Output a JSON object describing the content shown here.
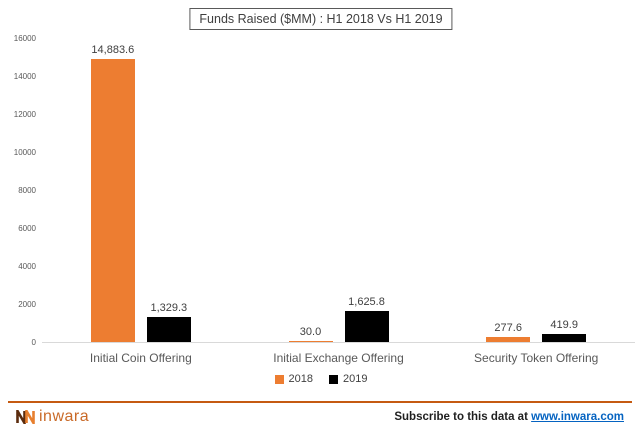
{
  "chart_data": {
    "type": "bar",
    "title": "Funds Raised ($MM) : H1 2018 Vs H1 2019",
    "categories": [
      "Initial Coin Offering",
      "Initial Exchange Offering",
      "Security Token Offering"
    ],
    "series": [
      {
        "name": "2018",
        "color": "#ED7D31",
        "values": [
          14883.6,
          30.0,
          277.6
        ],
        "labels": [
          "14,883.6",
          "30.0",
          "277.6"
        ]
      },
      {
        "name": "2019",
        "color": "#000000",
        "values": [
          1329.3,
          1625.8,
          419.9
        ],
        "labels": [
          "1,329.3",
          "1,625.8",
          "419.9"
        ]
      }
    ],
    "xlabel": "",
    "ylabel": "",
    "ylim": [
      0,
      16000
    ],
    "y_ticks": [
      0,
      2000,
      4000,
      6000,
      8000,
      10000,
      12000,
      14000,
      16000
    ],
    "grid": false,
    "legend_position": "bottom"
  },
  "footer": {
    "logo_text": "inwara",
    "subscribe_text": "Subscribe to this data at",
    "link_text": "www.inwara.com",
    "accent_color": "#C55A11",
    "logo_text_color": "#C96A28",
    "link_color": "#0563C1"
  }
}
